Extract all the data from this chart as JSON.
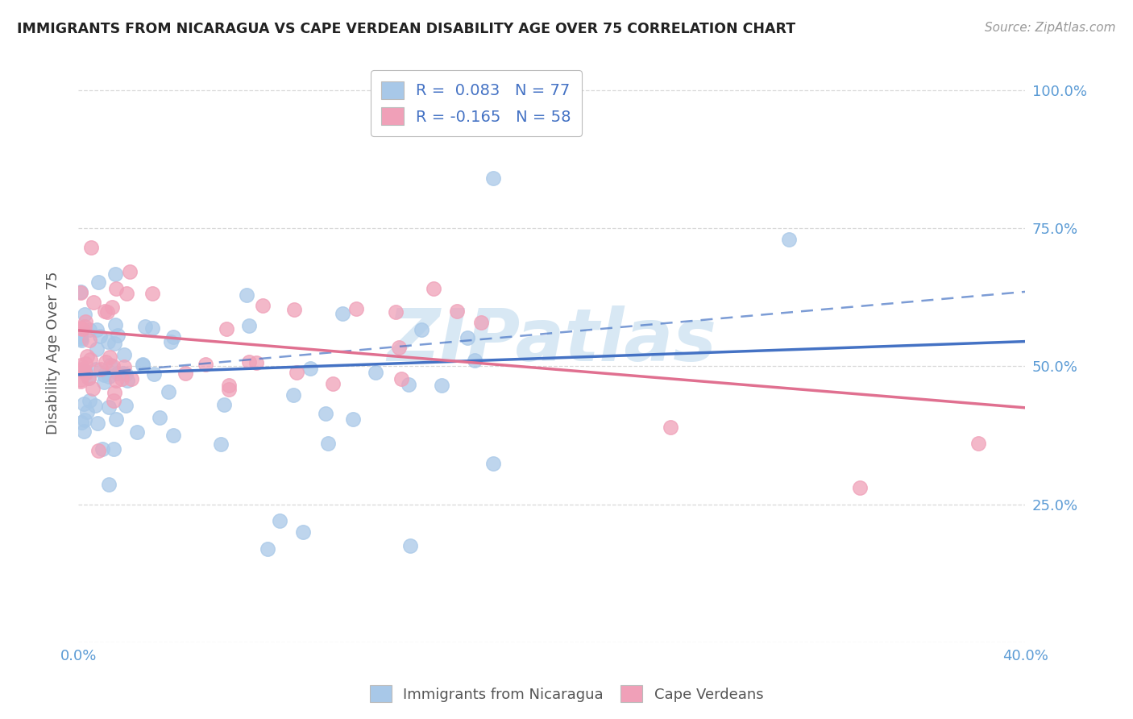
{
  "title": "IMMIGRANTS FROM NICARAGUA VS CAPE VERDEAN DISABILITY AGE OVER 75 CORRELATION CHART",
  "source": "Source: ZipAtlas.com",
  "ylabel": "Disability Age Over 75",
  "xmin": 0.0,
  "xmax": 0.4,
  "ymin": 0.0,
  "ymax": 1.05,
  "ytick_vals": [
    0.0,
    0.25,
    0.5,
    0.75,
    1.0
  ],
  "ytick_labels": [
    "",
    "25.0%",
    "50.0%",
    "75.0%",
    "100.0%"
  ],
  "xtick_vals": [
    0.0,
    0.08,
    0.16,
    0.24,
    0.32,
    0.4
  ],
  "xtick_labels": [
    "0.0%",
    "",
    "",
    "",
    "",
    "40.0%"
  ],
  "color_blue": "#A8C8E8",
  "color_pink": "#F0A0B8",
  "color_blue_line": "#4472C4",
  "color_pink_line": "#E07090",
  "color_blue_text": "#5B9BD5",
  "color_axis_text": "#5B9BD5",
  "watermark": "ZIPatlas",
  "watermark_color": "#C8DFF0",
  "grid_color": "#D8D8D8",
  "legend_text_color": "#4472C4",
  "bottom_legend_color": "#555555"
}
